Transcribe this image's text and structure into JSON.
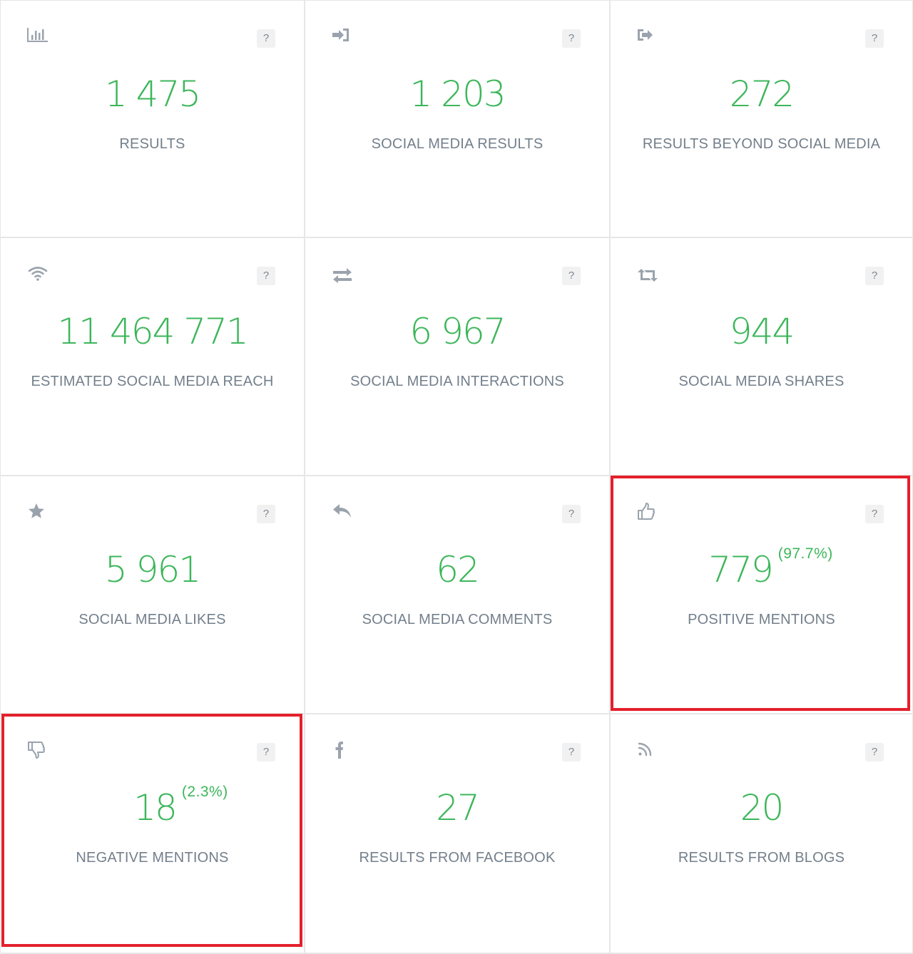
{
  "colors": {
    "value_green": "#3cb65a",
    "label_gray": "#737f8b",
    "icon_gray": "#9aa3ad",
    "highlight_red": "#e4202c",
    "divider": "#e7e7e7"
  },
  "help_label": "?",
  "tiles": [
    {
      "icon": "bar-chart-icon",
      "value": "1 475",
      "label": "RESULTS"
    },
    {
      "icon": "sign-in-icon",
      "value": "1 203",
      "label": "SOCIAL MEDIA RESULTS"
    },
    {
      "icon": "sign-out-icon",
      "value": "272",
      "label": "RESULTS BEYOND SOCIAL MEDIA"
    },
    {
      "icon": "wifi-icon",
      "value": "11 464 771",
      "label": "ESTIMATED SOCIAL MEDIA REACH"
    },
    {
      "icon": "exchange-icon",
      "value": "6 967",
      "label": "SOCIAL MEDIA INTERACTIONS"
    },
    {
      "icon": "retweet-icon",
      "value": "944",
      "label": "SOCIAL MEDIA SHARES"
    },
    {
      "icon": "star-icon",
      "value": "5 961",
      "label": "SOCIAL MEDIA LIKES"
    },
    {
      "icon": "reply-icon",
      "value": "62",
      "label": "SOCIAL MEDIA COMMENTS"
    },
    {
      "icon": "thumbs-up-icon",
      "value": "779",
      "percent": "(97.7%)",
      "label": "POSITIVE MENTIONS",
      "highlighted": true
    },
    {
      "icon": "thumbs-down-icon",
      "value": "18",
      "percent": "(2.3%)",
      "label": "NEGATIVE MENTIONS",
      "highlighted": true
    },
    {
      "icon": "facebook-icon",
      "value": "27",
      "label": "RESULTS FROM FACEBOOK"
    },
    {
      "icon": "rss-icon",
      "value": "20",
      "label": "RESULTS FROM BLOGS"
    }
  ]
}
